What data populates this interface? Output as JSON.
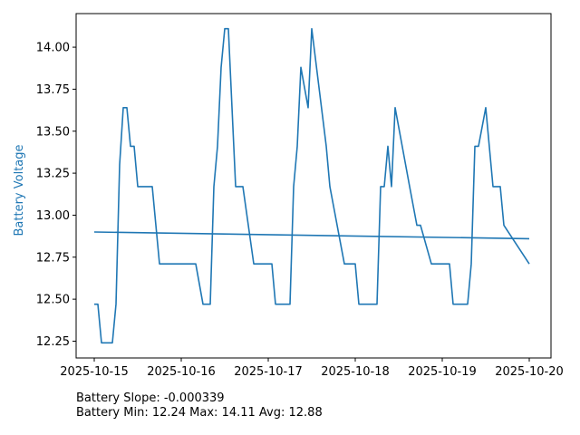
{
  "chart_data": {
    "type": "line",
    "ylabel": "Battery Voltage",
    "ylabel_color": "#1f77b4",
    "line_color": "#1f77b4",
    "x_ticks": [
      "2025-10-15",
      "2025-10-16",
      "2025-10-17",
      "2025-10-18",
      "2025-10-19",
      "2025-10-20"
    ],
    "y_ticks": [
      "12.25",
      "12.50",
      "12.75",
      "13.00",
      "13.25",
      "13.50",
      "13.75",
      "14.00"
    ],
    "xlim": [
      "2025-10-14T19:00",
      "2025-10-20T06:00"
    ],
    "ylim": [
      12.15,
      14.2
    ],
    "grid": false,
    "series": [
      {
        "x": [
          "2025-10-15T00:00",
          "2025-10-15T01:00",
          "2025-10-15T02:00",
          "2025-10-15T03:00",
          "2025-10-15T04:00",
          "2025-10-15T05:00",
          "2025-10-15T06:00",
          "2025-10-15T07:00",
          "2025-10-15T08:00",
          "2025-10-15T09:00",
          "2025-10-15T10:00",
          "2025-10-15T11:00",
          "2025-10-15T12:00",
          "2025-10-15T14:00",
          "2025-10-15T16:00",
          "2025-10-15T18:00",
          "2025-10-15T20:00",
          "2025-10-16T00:00",
          "2025-10-16T04:00",
          "2025-10-16T06:00",
          "2025-10-16T07:00",
          "2025-10-16T08:00",
          "2025-10-16T09:00",
          "2025-10-16T10:00",
          "2025-10-16T11:00",
          "2025-10-16T12:00",
          "2025-10-16T13:00",
          "2025-10-16T14:00",
          "2025-10-16T15:00",
          "2025-10-16T16:00",
          "2025-10-16T17:00",
          "2025-10-16T20:00",
          "2025-10-16T22:00",
          "2025-10-17T01:00",
          "2025-10-17T02:00",
          "2025-10-17T03:00",
          "2025-10-17T04:00",
          "2025-10-17T05:00",
          "2025-10-17T06:00",
          "2025-10-17T07:00",
          "2025-10-17T08:00",
          "2025-10-17T09:00",
          "2025-10-17T11:00",
          "2025-10-17T12:00",
          "2025-10-17T16:00",
          "2025-10-17T17:00",
          "2025-10-17T21:00",
          "2025-10-18T00:00",
          "2025-10-18T01:00",
          "2025-10-18T02:00",
          "2025-10-18T03:00",
          "2025-10-18T04:00",
          "2025-10-18T05:00",
          "2025-10-18T06:00",
          "2025-10-18T07:00",
          "2025-10-18T08:00",
          "2025-10-18T09:00",
          "2025-10-18T10:00",
          "2025-10-18T11:00",
          "2025-10-18T15:00",
          "2025-10-18T17:00",
          "2025-10-18T18:00",
          "2025-10-18T21:00",
          "2025-10-19T00:00",
          "2025-10-19T01:00",
          "2025-10-19T02:00",
          "2025-10-19T03:00",
          "2025-10-19T04:00",
          "2025-10-19T05:00",
          "2025-10-19T06:00",
          "2025-10-19T07:00",
          "2025-10-19T08:00",
          "2025-10-19T09:00",
          "2025-10-19T10:00",
          "2025-10-19T12:00",
          "2025-10-19T14:00",
          "2025-10-19T16:00",
          "2025-10-19T17:00",
          "2025-10-20T00:00"
        ],
        "y": [
          12.47,
          12.47,
          12.24,
          12.24,
          12.24,
          12.24,
          12.47,
          13.3,
          13.64,
          13.64,
          13.41,
          13.41,
          13.17,
          13.17,
          13.17,
          12.71,
          12.71,
          12.71,
          12.71,
          12.47,
          12.47,
          12.47,
          13.17,
          13.41,
          13.88,
          14.11,
          14.11,
          13.64,
          13.17,
          13.17,
          13.17,
          12.71,
          12.71,
          12.71,
          12.47,
          12.47,
          12.47,
          12.47,
          12.47,
          13.17,
          13.41,
          13.88,
          13.64,
          14.11,
          13.41,
          13.17,
          12.71,
          12.71,
          12.47,
          12.47,
          12.47,
          12.47,
          12.47,
          12.47,
          13.17,
          13.17,
          13.41,
          13.17,
          13.64,
          13.17,
          12.94,
          12.94,
          12.71,
          12.71,
          12.71,
          12.71,
          12.47,
          12.47,
          12.47,
          12.47,
          12.47,
          12.71,
          13.41,
          13.41,
          13.64,
          13.17,
          13.17,
          12.94,
          12.71
        ]
      },
      {
        "x": [
          "2025-10-15T00:00",
          "2025-10-20T00:00"
        ],
        "y": [
          12.9,
          12.86
        ]
      }
    ]
  },
  "footer": {
    "line1": "Battery Slope: -0.000339",
    "line2": "Battery Min: 12.24 Max: 14.11 Avg: 12.88"
  }
}
